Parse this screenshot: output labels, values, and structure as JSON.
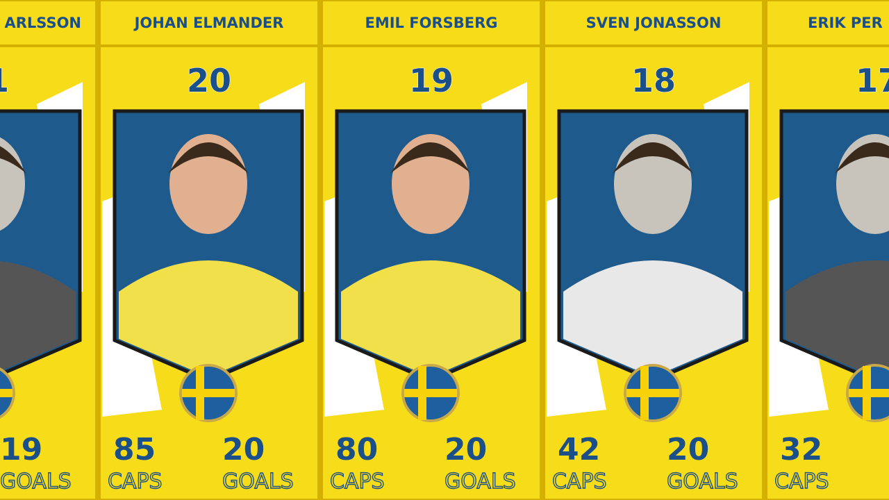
{
  "labels": {
    "caps": "CAPS",
    "goals": "GOALS"
  },
  "cards": [
    {
      "name": "ARLSSON",
      "rank": "1",
      "goals": "19"
    },
    {
      "name": "JOHAN ELMANDER",
      "rank": "20",
      "caps": "85",
      "goals": "20"
    },
    {
      "name": "EMIL FORSBERG",
      "rank": "19",
      "caps": "80",
      "goals": "20"
    },
    {
      "name": "SVEN JONASSON",
      "rank": "18",
      "caps": "42",
      "goals": "20"
    },
    {
      "name": "ERIK PER",
      "rank": "17",
      "caps": "32"
    }
  ]
}
